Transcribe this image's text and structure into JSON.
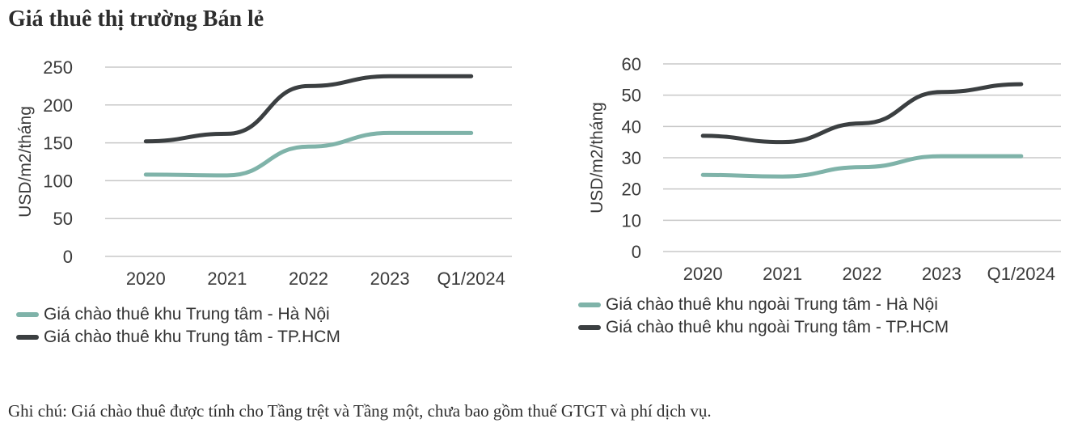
{
  "page": {
    "title": "Giá thuê thị trường Bán lẻ",
    "note": "Ghi chú: Giá chào thuê được tính cho Tầng trệt và Tầng một, chưa bao gồm thuế GTGT và phí dịch vụ."
  },
  "colors": {
    "hanoi": "#7fb3a9",
    "hcm": "#3b3f41",
    "grid": "#c8c8c8"
  },
  "chart_data": [
    {
      "type": "line",
      "title": "",
      "xlabel": "",
      "ylabel": "USD/m2/tháng",
      "categories": [
        "2020",
        "2021",
        "2022",
        "2023",
        "Q1/2024"
      ],
      "ylim": [
        0,
        250
      ],
      "yticks": [
        0,
        50,
        100,
        150,
        200,
        250
      ],
      "grid": true,
      "legend": "bottom",
      "series": [
        {
          "name": "Giá chào thuê khu Trung tâm - Hà Nội",
          "color_key": "hanoi",
          "values": [
            108,
            107,
            145,
            163,
            163
          ]
        },
        {
          "name": "Giá chào thuê khu Trung tâm - TP.HCM",
          "color_key": "hcm",
          "values": [
            152,
            162,
            225,
            238,
            238
          ]
        }
      ]
    },
    {
      "type": "line",
      "title": "",
      "xlabel": "",
      "ylabel": "USD/m2/tháng",
      "categories": [
        "2020",
        "2021",
        "2022",
        "2023",
        "Q1/2024"
      ],
      "ylim": [
        0,
        60
      ],
      "yticks": [
        0,
        10,
        20,
        30,
        40,
        50,
        60
      ],
      "grid": true,
      "legend": "bottom",
      "series": [
        {
          "name": "Giá chào thuê khu ngoài Trung tâm - Hà Nội",
          "color_key": "hanoi",
          "values": [
            24.5,
            24,
            27,
            30.5,
            30.5
          ]
        },
        {
          "name": "Giá chào thuê khu ngoài Trung tâm - TP.HCM",
          "color_key": "hcm",
          "values": [
            37,
            35,
            41,
            51,
            53.5
          ]
        }
      ]
    }
  ]
}
